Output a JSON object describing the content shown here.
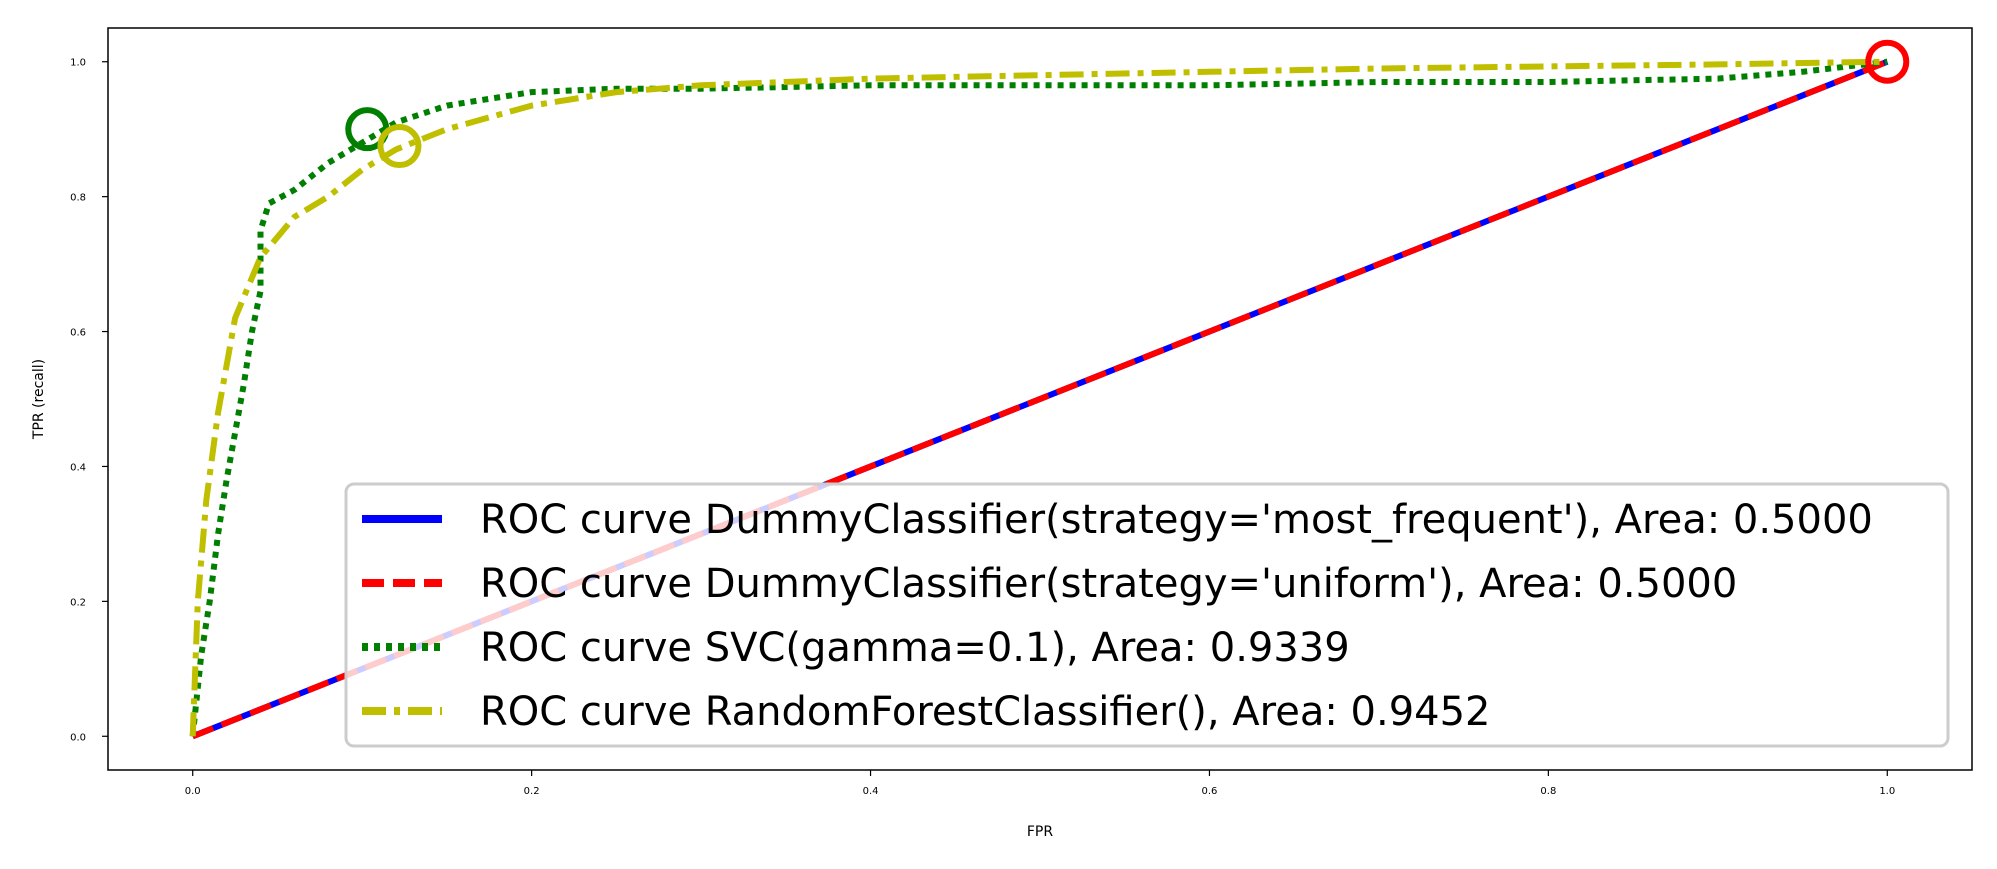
{
  "chart_data": {
    "type": "line",
    "xlabel": "FPR",
    "ylabel": "TPR (recall)",
    "xlim": [
      -0.05,
      1.05
    ],
    "ylim": [
      -0.05,
      1.05
    ],
    "x_ticks": [
      "0.0",
      "0.2",
      "0.4",
      "0.6",
      "0.8",
      "1.0"
    ],
    "y_ticks": [
      "0.0",
      "0.2",
      "0.4",
      "0.6",
      "0.8",
      "1.0"
    ],
    "grid": false,
    "legend_position": "bottom-right",
    "series": [
      {
        "name": "ROC curve DummyClassifier(strategy='most_frequent'), Area: 0.5000",
        "color": "#0000ff",
        "style": "solid",
        "points": [
          [
            0.0,
            0.0
          ],
          [
            1.0,
            1.0
          ]
        ],
        "marker": [
          1.0,
          1.0
        ]
      },
      {
        "name": "ROC curve DummyClassifier(strategy='uniform'), Area: 0.5000",
        "color": "#ff0000",
        "style": "dashed",
        "points": [
          [
            0.0,
            0.0
          ],
          [
            1.0,
            1.0
          ]
        ],
        "marker": [
          1.0,
          1.0
        ]
      },
      {
        "name": "ROC curve SVC(gamma=0.1), Area: 0.9339",
        "color": "#007f00",
        "style": "dotted",
        "points": [
          [
            0.0,
            0.0
          ],
          [
            0.005,
            0.12
          ],
          [
            0.01,
            0.2
          ],
          [
            0.015,
            0.3
          ],
          [
            0.02,
            0.38
          ],
          [
            0.025,
            0.45
          ],
          [
            0.03,
            0.52
          ],
          [
            0.035,
            0.6
          ],
          [
            0.04,
            0.66
          ],
          [
            0.04,
            0.75
          ],
          [
            0.045,
            0.79
          ],
          [
            0.06,
            0.81
          ],
          [
            0.08,
            0.85
          ],
          [
            0.1,
            0.88
          ],
          [
            0.12,
            0.91
          ],
          [
            0.15,
            0.935
          ],
          [
            0.2,
            0.955
          ],
          [
            0.25,
            0.96
          ],
          [
            0.3,
            0.96
          ],
          [
            0.4,
            0.965
          ],
          [
            0.5,
            0.965
          ],
          [
            0.6,
            0.965
          ],
          [
            0.7,
            0.97
          ],
          [
            0.8,
            0.97
          ],
          [
            0.9,
            0.975
          ],
          [
            0.95,
            0.985
          ],
          [
            1.0,
            1.0
          ]
        ],
        "marker": [
          0.103,
          0.9
        ]
      },
      {
        "name": "ROC curve RandomForestClassifier(), Area: 0.9452",
        "color": "#bfbf00",
        "style": "dashdot",
        "points": [
          [
            0.0,
            0.0
          ],
          [
            0.003,
            0.2
          ],
          [
            0.008,
            0.35
          ],
          [
            0.015,
            0.48
          ],
          [
            0.025,
            0.62
          ],
          [
            0.035,
            0.68
          ],
          [
            0.04,
            0.71
          ],
          [
            0.05,
            0.74
          ],
          [
            0.06,
            0.77
          ],
          [
            0.08,
            0.8
          ],
          [
            0.1,
            0.84
          ],
          [
            0.12,
            0.87
          ],
          [
            0.15,
            0.9
          ],
          [
            0.2,
            0.935
          ],
          [
            0.25,
            0.955
          ],
          [
            0.3,
            0.965
          ],
          [
            0.4,
            0.975
          ],
          [
            0.5,
            0.98
          ],
          [
            0.6,
            0.985
          ],
          [
            0.7,
            0.99
          ],
          [
            0.8,
            0.993
          ],
          [
            0.9,
            0.996
          ],
          [
            1.0,
            1.0
          ]
        ],
        "marker": [
          0.122,
          0.875
        ]
      }
    ]
  }
}
